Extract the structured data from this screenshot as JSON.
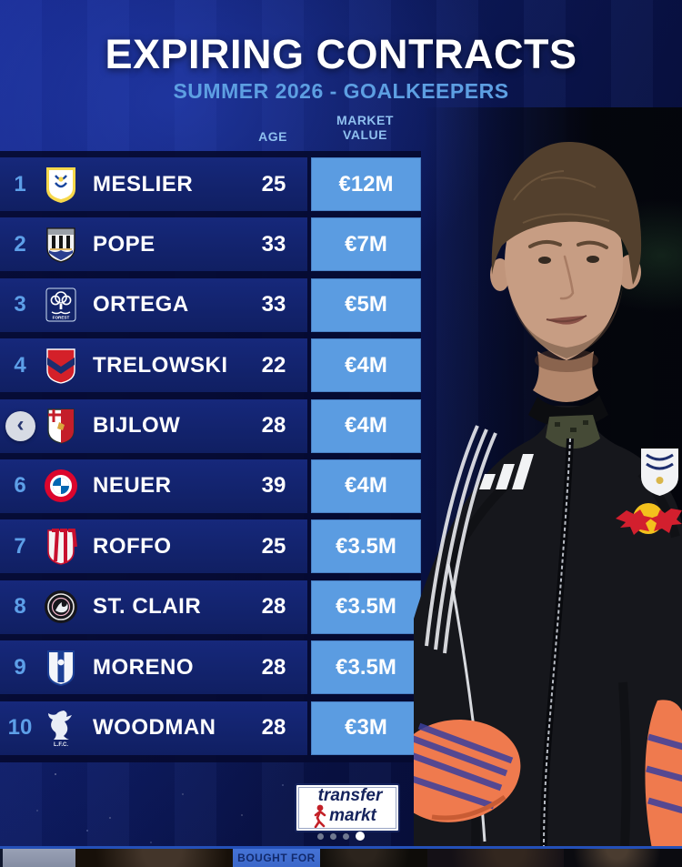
{
  "header": {
    "title": "EXPIRING CONTRACTS",
    "subtitle": "SUMMER 2026 - GOALKEEPERS"
  },
  "table": {
    "col_age": "AGE",
    "col_market_value_line1": "MARKET",
    "col_market_value_line2": "VALUE",
    "rows": [
      {
        "rank": "1",
        "player": "MESLIER",
        "age": "25",
        "value": "€12M",
        "club_badge": "leeds-united"
      },
      {
        "rank": "2",
        "player": "POPE",
        "age": "33",
        "value": "€7M",
        "club_badge": "newcastle-united"
      },
      {
        "rank": "3",
        "player": "ORTEGA",
        "age": "33",
        "value": "€5M",
        "club_badge": "nottingham-forest",
        "badge_text": "FOREST"
      },
      {
        "rank": "4",
        "player": "TRELOWSKI",
        "age": "22",
        "value": "€4M",
        "club_badge": "rakow-czestochowa"
      },
      {
        "rank": "5",
        "player": "BIJLOW",
        "age": "28",
        "value": "€4M",
        "club_badge": "genoa"
      },
      {
        "rank": "6",
        "player": "NEUER",
        "age": "39",
        "value": "€4M",
        "club_badge": "bayern-munich"
      },
      {
        "rank": "7",
        "player": "ROFFO",
        "age": "25",
        "value": "€3.5M",
        "club_badge": "instituto-cordoba"
      },
      {
        "rank": "8",
        "player": "ST. CLAIR",
        "age": "28",
        "value": "€3.5M",
        "club_badge": "inter-miami"
      },
      {
        "rank": "9",
        "player": "MORENO",
        "age": "28",
        "value": "€3.5M",
        "club_badge": "pachuca"
      },
      {
        "rank": "10",
        "player": "WOODMAN",
        "age": "28",
        "value": "€3M",
        "club_badge": "liverpool",
        "badge_text": "L.F.C."
      }
    ]
  },
  "carousel": {
    "prev_icon": "chevron-left",
    "dots_total": 4,
    "active_dot": 4
  },
  "footer": {
    "logo_line1": "transfer",
    "logo_line2": "markt"
  },
  "teaser": {
    "label": "BOUGHT FOR"
  },
  "colors": {
    "value_cell": "#5b9ce1",
    "row_bg": "#122268",
    "rank_text": "#5d9fe8",
    "subtitle_text": "#5d9fe2",
    "header_text": "#8fc0ef",
    "page_bg": "#0d1a5e"
  }
}
